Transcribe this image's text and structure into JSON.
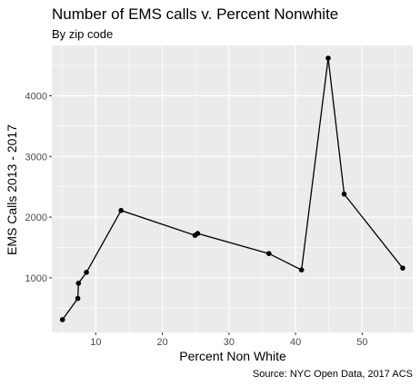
{
  "chart_data": {
    "type": "line",
    "title": "Number of EMS calls v. Percent Nonwhite",
    "subtitle": "By zip code",
    "xlabel": "Percent Non White",
    "ylabel": "EMS Calls 2013 - 2017",
    "caption": "Source: NYC Open Data, 2017 ACS",
    "xlim": [
      3.4,
      57.6
    ],
    "ylim": [
      100,
      4830
    ],
    "xticks": [
      10,
      20,
      30,
      40,
      50
    ],
    "yticks": [
      1000,
      2000,
      3000,
      4000
    ],
    "xticks_minor": [
      5,
      15,
      25,
      35,
      45,
      55
    ],
    "yticks_minor": [
      500,
      1500,
      2500,
      3500,
      4500
    ],
    "grid": true,
    "line_color": "#000000",
    "panel_color": "#ebebeb",
    "grid_color": "#ffffff",
    "series": [
      {
        "x": [
          5.0,
          7.3,
          7.4,
          8.6,
          13.8,
          24.9,
          25.3,
          36.0,
          40.9,
          44.9,
          47.3,
          56.1
        ],
        "y": [
          310,
          660,
          910,
          1090,
          2110,
          1700,
          1730,
          1400,
          1130,
          4620,
          2380,
          1160
        ]
      }
    ]
  }
}
